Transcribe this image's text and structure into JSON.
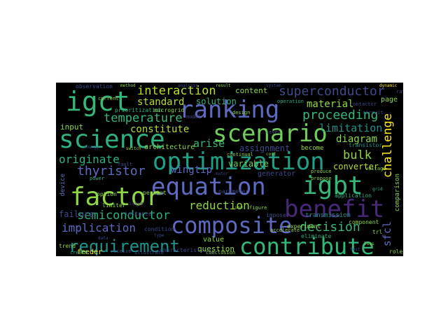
{
  "word_cloud": {
    "big": {
      "igct": "igct",
      "ranking": "ranking",
      "science": "science",
      "scenario": "scenario",
      "optimization": "optimization",
      "equation": "equation",
      "factor": "factor",
      "igbt": "igbt",
      "benefit": "benefit",
      "composite": "composite",
      "contribute": "contribute",
      "requirement": "requirement"
    },
    "medium": {
      "interaction": "interaction",
      "superconductor": "superconductor",
      "standard": "standard",
      "solution": "solution",
      "content": "content",
      "material": "material",
      "proceeding": "proceeding",
      "temperature": "temperature",
      "limitation": "limitation",
      "constitute": "constitute",
      "challenge": "challenge",
      "arise": "arise",
      "diagram": "diagram",
      "assignment": "assignment",
      "originate": "originate",
      "bulk": "bulk",
      "thyristor": "thyristor",
      "wingtip": "wingtip",
      "variable": "variable",
      "converter": "converter",
      "generator": "generator",
      "reduction": "reduction",
      "semiconductor": "semiconductor",
      "implication": "implication",
      "decision": "decision",
      "sfcl": "sfcl",
      "question": "question",
      "value": "value",
      "feeder": "feeder",
      "failure": "failure",
      "input": "input",
      "architecture": "architecture",
      "become": "become",
      "page": "page"
    },
    "small": {
      "prioritization": "prioritization",
      "microgrid": "microgrid",
      "observation": "observation",
      "transistor": "transistor",
      "comparison": "comparison",
      "transmission": "transmission",
      "application": "application",
      "experiment": "experiment",
      "condition": "condition",
      "option": "option",
      "limiter": "limiter",
      "device": "device",
      "persist": "persist",
      "characteristic": "characteristic",
      "conclusion": "conclusion",
      "instance": "instance",
      "eliminate": "eliminate",
      "component": "component",
      "impose": "impose",
      "parameter": "parameter",
      "continual": "continual",
      "trend": "trend",
      "role": "role",
      "contactor": "contactor",
      "operation": "operation",
      "produce": "produce",
      "circuit": "circuit",
      "rated": "rated",
      "propose": "propose",
      "create": "create",
      "receive": "receive",
      "illustrate": "illustrate",
      "current": "current",
      "level": "level",
      "accelerate": "accelerate",
      "design": "design",
      "model": "model",
      "figure": "figure",
      "issue": "issue",
      "voltage": "voltage",
      "power": "power",
      "fault": "fault",
      "trl": "trl",
      "dynamic": "dynamic",
      "analysis": "analysis",
      "result": "result",
      "system": "system",
      "method": "method",
      "data": "data",
      "cost": "cost",
      "grid": "grid",
      "type": "type",
      "use": "use",
      "test": "test",
      "loss": "loss",
      "energy": "energy",
      "switch": "switch",
      "motor": "motor"
    }
  },
  "colors": {
    "background": "#000000",
    "palette": [
      "#8fd744",
      "#b5de2b",
      "#35b779",
      "#21918c",
      "#2db27d",
      "#3e4989",
      "#482878",
      "#5e6ac0",
      "#6ece58",
      "#1fa187",
      "#fde725"
    ]
  }
}
